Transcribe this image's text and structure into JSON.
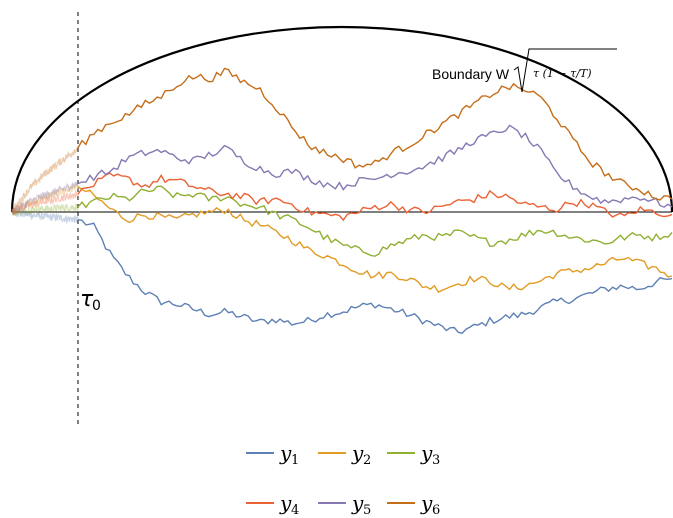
{
  "chart_data": {
    "type": "line",
    "annotations": {
      "boundary_label": "Boundary W",
      "boundary_formula": "τ (1 − τ/T)",
      "tau0_label": "τ",
      "tau0_sub": "0"
    },
    "series": [
      {
        "name": "y",
        "sub": "1",
        "color": "#5e81b5",
        "values": [
          -0.06,
          -0.12,
          -0.34,
          -0.5,
          -0.62,
          -0.7,
          -0.72,
          -0.76,
          -0.8,
          -0.78,
          -0.82,
          -0.86,
          -0.84,
          -0.87,
          -0.85,
          -0.8,
          -0.78,
          -0.74,
          -0.72,
          -0.76,
          -0.8,
          -0.85,
          -0.9,
          -0.94,
          -0.9,
          -0.85,
          -0.82,
          -0.8,
          -0.75,
          -0.7,
          -0.68,
          -0.64,
          -0.6,
          -0.58,
          -0.6,
          -0.55,
          -0.52
        ]
      },
      {
        "name": "y",
        "sub": "2",
        "color": "#e19c24",
        "values": [
          0.2,
          0.12,
          0.02,
          -0.06,
          -0.02,
          -0.04,
          -0.06,
          -0.02,
          0.0,
          0.02,
          -0.06,
          -0.1,
          -0.16,
          -0.22,
          -0.3,
          -0.34,
          -0.4,
          -0.46,
          -0.5,
          -0.48,
          -0.52,
          -0.58,
          -0.6,
          -0.56,
          -0.52,
          -0.54,
          -0.6,
          -0.58,
          -0.54,
          -0.48,
          -0.46,
          -0.44,
          -0.4,
          -0.36,
          -0.4,
          -0.44,
          -0.5
        ]
      },
      {
        "name": "y",
        "sub": "3",
        "color": "#8fb032",
        "values": [
          0.04,
          0.08,
          0.12,
          0.1,
          0.16,
          0.18,
          0.12,
          0.14,
          0.1,
          0.12,
          0.06,
          0.04,
          -0.02,
          -0.06,
          -0.12,
          -0.2,
          -0.26,
          -0.3,
          -0.32,
          -0.26,
          -0.22,
          -0.18,
          -0.2,
          -0.16,
          -0.2,
          -0.24,
          -0.22,
          -0.18,
          -0.14,
          -0.16,
          -0.2,
          -0.22,
          -0.24,
          -0.2,
          -0.18,
          -0.2,
          -0.16
        ]
      },
      {
        "name": "y",
        "sub": "4",
        "color": "#eb6235",
        "values": [
          0.14,
          0.22,
          0.28,
          0.26,
          0.2,
          0.26,
          0.24,
          0.2,
          0.16,
          0.14,
          0.12,
          0.08,
          0.1,
          0.06,
          0.0,
          -0.02,
          -0.04,
          0.0,
          0.04,
          0.06,
          0.02,
          0.0,
          0.04,
          0.08,
          0.1,
          0.14,
          0.12,
          0.06,
          0.04,
          0.02,
          0.08,
          0.06,
          0.0,
          -0.04,
          0.02,
          0.0,
          -0.02
        ]
      },
      {
        "name": "y",
        "sub": "5",
        "color": "#8778b3",
        "values": [
          0.22,
          0.28,
          0.32,
          0.42,
          0.46,
          0.48,
          0.42,
          0.4,
          0.45,
          0.5,
          0.4,
          0.34,
          0.3,
          0.32,
          0.26,
          0.22,
          0.2,
          0.24,
          0.26,
          0.3,
          0.32,
          0.36,
          0.42,
          0.48,
          0.56,
          0.6,
          0.66,
          0.6,
          0.48,
          0.3,
          0.2,
          0.12,
          0.08,
          0.1,
          0.12,
          0.08,
          0.04
        ]
      },
      {
        "name": "y",
        "sub": "6",
        "color": "#c56e1a",
        "values": [
          0.5,
          0.62,
          0.7,
          0.76,
          0.84,
          0.9,
          1.0,
          1.06,
          1.04,
          1.1,
          1.02,
          0.96,
          0.82,
          0.66,
          0.52,
          0.46,
          0.42,
          0.36,
          0.38,
          0.46,
          0.52,
          0.6,
          0.68,
          0.76,
          0.84,
          0.92,
          0.98,
          0.96,
          0.9,
          0.74,
          0.56,
          0.4,
          0.3,
          0.22,
          0.18,
          0.12,
          0.1
        ]
      }
    ],
    "x_range": [
      0,
      1
    ],
    "y_range": [
      -1.3,
      1.3
    ],
    "legend_position": "bottom"
  }
}
